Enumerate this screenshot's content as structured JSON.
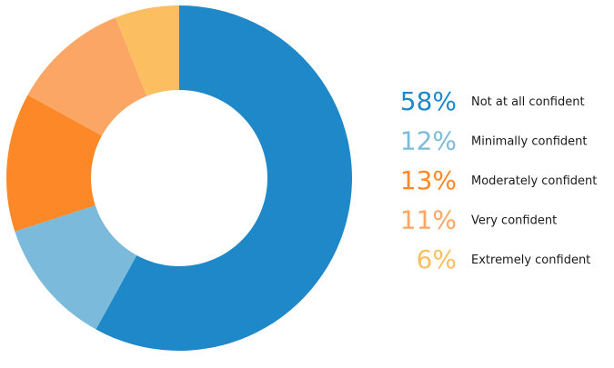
{
  "chart_data": {
    "type": "pie",
    "variant": "donut",
    "title": "",
    "legend_placement": "right",
    "slices": [
      {
        "label": "Not at all confident",
        "value": 58,
        "display": "58%",
        "color": "#1f88c8"
      },
      {
        "label": "Minimally confident",
        "value": 12,
        "display": "12%",
        "color": "#7cbadb"
      },
      {
        "label": "Moderately confident",
        "value": 13,
        "display": "13%",
        "color": "#fd8827"
      },
      {
        "label": "Very confident",
        "value": 11,
        "display": "11%",
        "color": "#fba664"
      },
      {
        "label": "Extremely confident",
        "value": 6,
        "display": "6%",
        "color": "#fbbf61"
      }
    ]
  }
}
